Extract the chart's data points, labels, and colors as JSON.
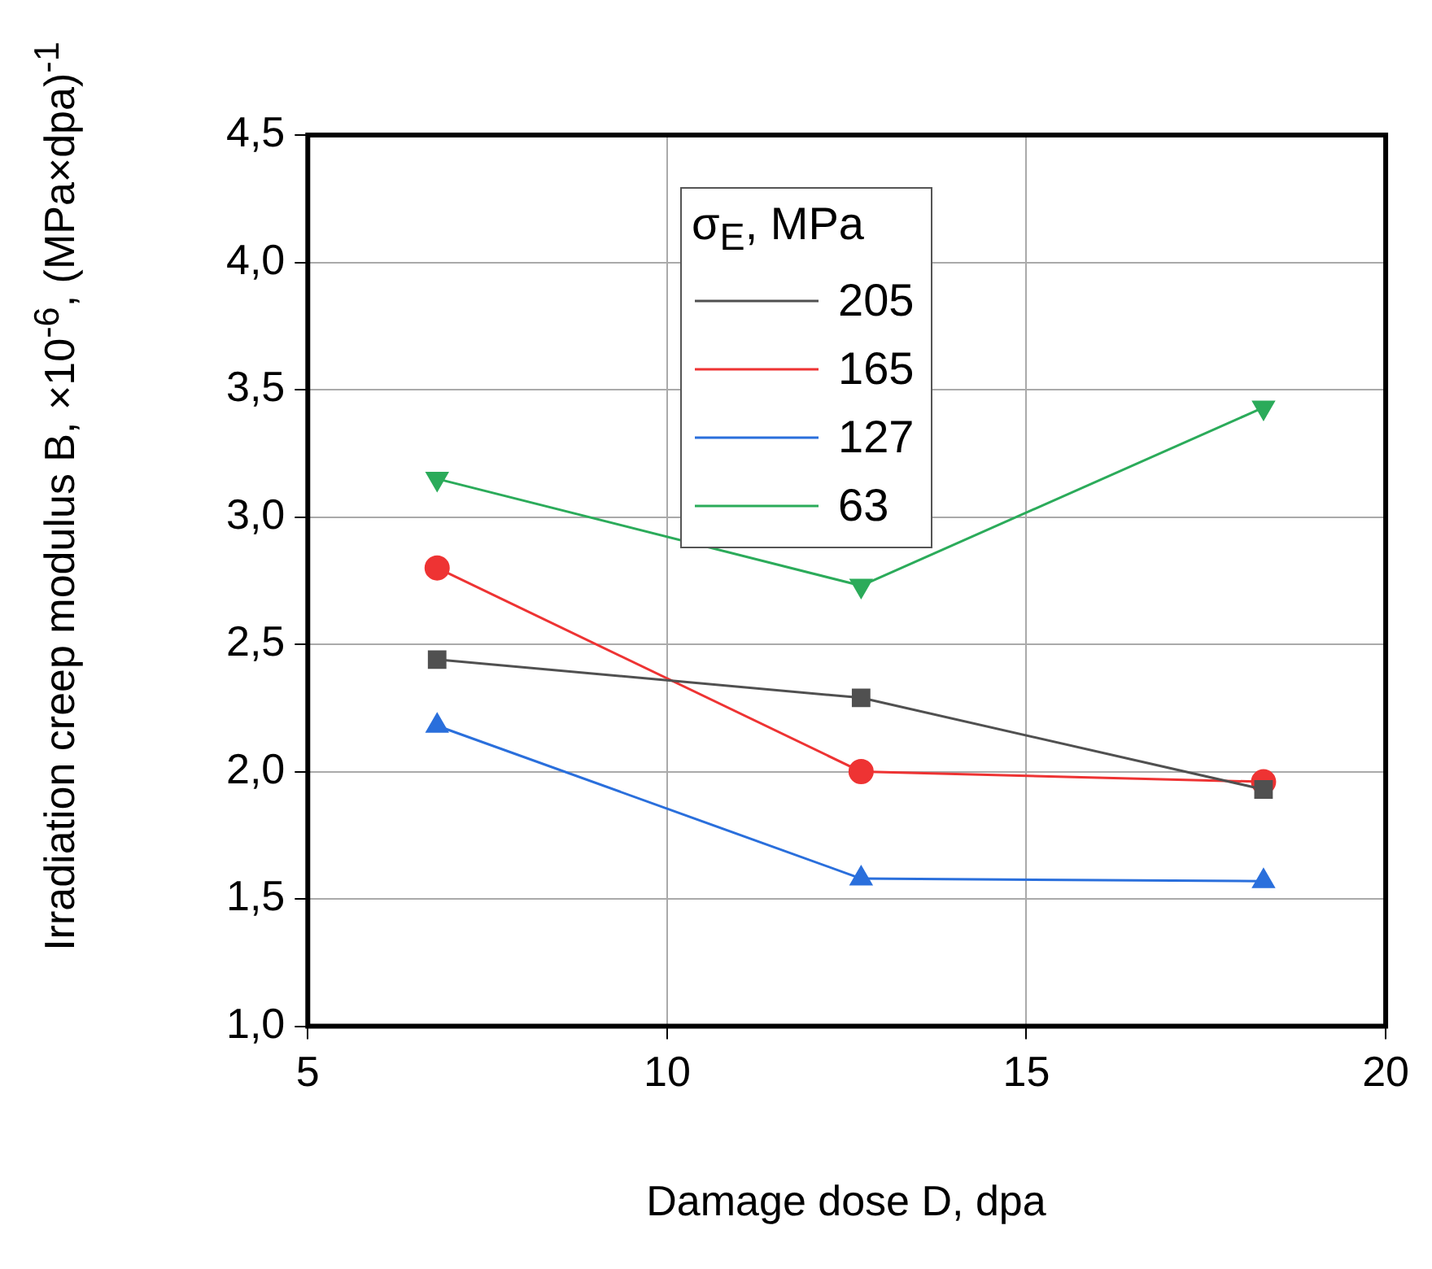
{
  "chart_data": {
    "type": "line",
    "xlabel": "Damage dose D, dpa",
    "ylabel": "Irradiation creep modulus B, ×10$^{-6}$, (MPa×dpa)$^{-1}$",
    "legend_title": "σ$_{E}$, MPa",
    "x": [
      6.8,
      12.7,
      18.3
    ],
    "series": [
      {
        "name": "205",
        "color": "#505050",
        "marker": "square",
        "values": [
          2.44,
          2.29,
          1.93
        ]
      },
      {
        "name": "165",
        "color": "#ee3333",
        "marker": "circle",
        "values": [
          2.8,
          2.0,
          1.96
        ]
      },
      {
        "name": "127",
        "color": "#2a6fdc",
        "marker": "triangle",
        "values": [
          2.18,
          1.58,
          1.57
        ]
      },
      {
        "name": "63",
        "color": "#2bab5a",
        "marker": "triangle-down",
        "values": [
          3.15,
          2.73,
          3.43
        ]
      }
    ],
    "xlim": [
      5,
      20
    ],
    "xticks": [
      5,
      10,
      15,
      20
    ],
    "ylim": [
      1,
      4.5
    ],
    "yticks": [
      {
        "value": 1,
        "label": "1,0"
      },
      {
        "value": 1.5,
        "label": "1,5"
      },
      {
        "value": 2,
        "label": "2,0"
      },
      {
        "value": 2.5,
        "label": "2,5"
      },
      {
        "value": 3,
        "label": "3,0"
      },
      {
        "value": 3.5,
        "label": "3,5"
      },
      {
        "value": 4,
        "label": "4,0"
      },
      {
        "value": 4.5,
        "label": "4,5"
      }
    ],
    "grid": true,
    "legend": "top",
    "line_style": "solid"
  }
}
